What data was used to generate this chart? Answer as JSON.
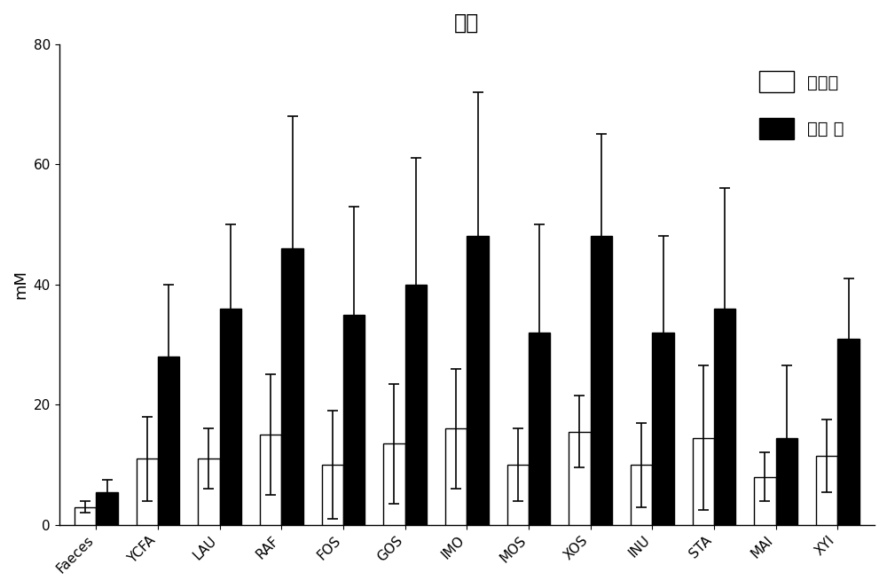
{
  "title": "乙酸",
  "ylabel": "mM",
  "categories": [
    "Faeces",
    "YCFA",
    "LAU",
    "RAF",
    "FOS",
    "GOS",
    "IMO",
    "MOS",
    "XOS",
    "INU",
    "STA",
    "MAI",
    "XYI"
  ],
  "healthy_means": [
    3,
    11,
    11,
    15,
    10,
    13.5,
    16,
    10,
    15.5,
    10,
    14.5,
    8,
    11.5
  ],
  "healthy_errors": [
    1,
    7,
    5,
    10,
    9,
    10,
    10,
    6,
    6,
    7,
    12,
    4,
    6
  ],
  "constip_means": [
    5.5,
    28,
    36,
    46,
    35,
    40,
    48,
    32,
    48,
    32,
    36,
    14.5,
    31
  ],
  "constip_errors": [
    2,
    12,
    14,
    22,
    18,
    21,
    24,
    18,
    17,
    16,
    20,
    12,
    10
  ],
  "ylim": [
    0,
    80
  ],
  "yticks": [
    0,
    20,
    40,
    60,
    80
  ],
  "legend_healthy": "健康组",
  "legend_constip": "便秘 组",
  "bar_width": 0.35,
  "background_color": "white",
  "title_fontsize": 17,
  "label_fontsize": 13,
  "tick_fontsize": 11,
  "legend_fontsize": 14
}
